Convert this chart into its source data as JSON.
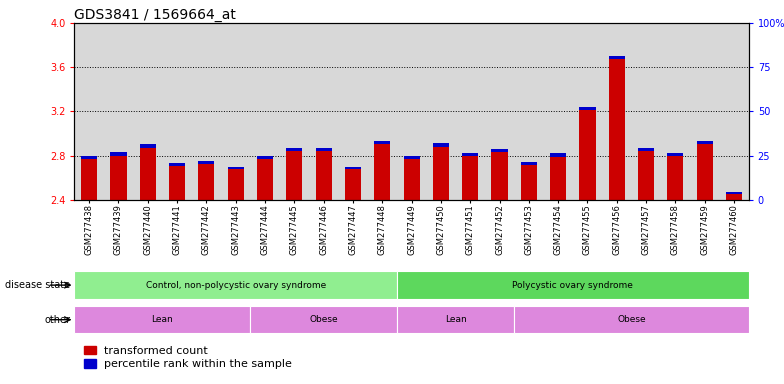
{
  "title": "GDS3841 / 1569664_at",
  "samples": [
    "GSM277438",
    "GSM277439",
    "GSM277440",
    "GSM277441",
    "GSM277442",
    "GSM277443",
    "GSM277444",
    "GSM277445",
    "GSM277446",
    "GSM277447",
    "GSM277448",
    "GSM277449",
    "GSM277450",
    "GSM277451",
    "GSM277452",
    "GSM277453",
    "GSM277454",
    "GSM277455",
    "GSM277456",
    "GSM277457",
    "GSM277458",
    "GSM277459",
    "GSM277460"
  ],
  "red_values": [
    2.8,
    2.83,
    2.9,
    2.73,
    2.75,
    2.7,
    2.8,
    2.87,
    2.87,
    2.7,
    2.93,
    2.8,
    2.91,
    2.82,
    2.86,
    2.74,
    2.82,
    3.24,
    3.7,
    2.87,
    2.82,
    2.93,
    2.47
  ],
  "blue_values": [
    0.03,
    0.035,
    0.03,
    0.025,
    0.025,
    0.025,
    0.03,
    0.03,
    0.03,
    0.025,
    0.03,
    0.03,
    0.03,
    0.028,
    0.03,
    0.025,
    0.03,
    0.03,
    0.03,
    0.025,
    0.025,
    0.03,
    0.02
  ],
  "ylim_left": [
    2.4,
    4.0
  ],
  "ylim_right": [
    0,
    100
  ],
  "yticks_left": [
    2.4,
    2.8,
    3.2,
    3.6,
    4.0
  ],
  "yticks_right": [
    0,
    25,
    50,
    75,
    100
  ],
  "ytick_labels_right": [
    "0",
    "25",
    "50",
    "75",
    "100%"
  ],
  "grid_lines": [
    2.8,
    3.2,
    3.6
  ],
  "disease_state_groups": [
    {
      "label": "Control, non-polycystic ovary syndrome",
      "start": 0,
      "end": 11,
      "color": "#90EE90"
    },
    {
      "label": "Polycystic ovary syndrome",
      "start": 11,
      "end": 23,
      "color": "#5DD85D"
    }
  ],
  "other_groups": [
    {
      "label": "Lean",
      "start": 0,
      "end": 6,
      "color": "#DD88DD"
    },
    {
      "label": "Obese",
      "start": 6,
      "end": 11,
      "color": "#DD88DD"
    },
    {
      "label": "Lean",
      "start": 11,
      "end": 15,
      "color": "#DD88DD"
    },
    {
      "label": "Obese",
      "start": 15,
      "end": 23,
      "color": "#DD88DD"
    }
  ],
  "bar_color_red": "#CC0000",
  "bar_color_blue": "#0000CC",
  "background_color": "#D8D8D8",
  "fig_bg": "#FFFFFF",
  "title_fontsize": 10,
  "tick_fontsize": 6,
  "label_fontsize": 7,
  "legend_fontsize": 8,
  "bar_width": 0.55
}
